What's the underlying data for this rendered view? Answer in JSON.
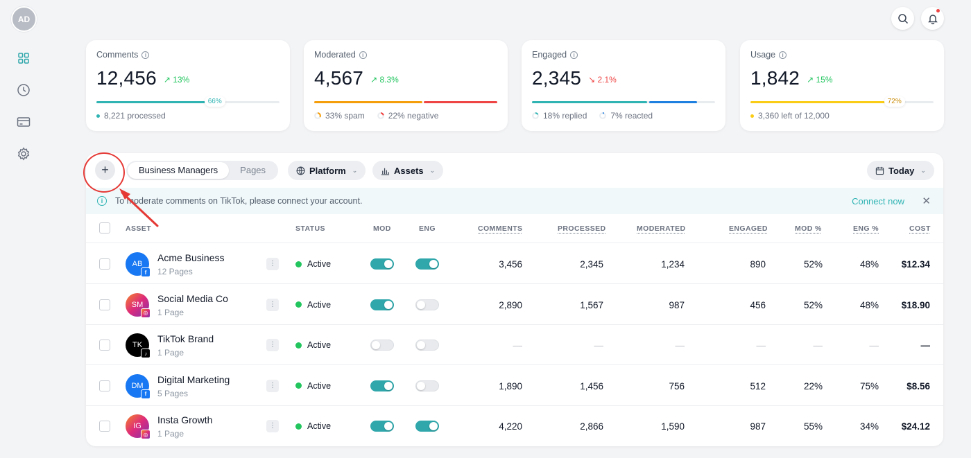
{
  "user": {
    "initials": "AD"
  },
  "sidebar": {
    "items": [
      {
        "icon": "grid-icon",
        "active": true
      },
      {
        "icon": "clock-icon",
        "active": false
      },
      {
        "icon": "credit-card-icon",
        "active": false
      },
      {
        "icon": "gear-icon",
        "active": false
      }
    ]
  },
  "stats": [
    {
      "title": "Comments",
      "value": "12,456",
      "delta": "↗ 13%",
      "trend": "up",
      "progress": 0.66,
      "pill": "66%",
      "footer": [
        "8,221 processed"
      ]
    },
    {
      "title": "Moderated",
      "value": "4,567",
      "delta": "↗ 8.3%",
      "trend": "up",
      "split": [
        0.33,
        0.22
      ],
      "footer": [
        "33% spam",
        "22% negative"
      ]
    },
    {
      "title": "Engaged",
      "value": "2,345",
      "delta": "↘ 2.1%",
      "trend": "down",
      "split": [
        0.18,
        0.07
      ],
      "footer": [
        "18% replied",
        "7% reacted"
      ]
    },
    {
      "title": "Usage",
      "value": "1,842",
      "delta": "↗ 15%",
      "trend": "up",
      "progress": 0.72,
      "pill": "72%",
      "footer": [
        "3,360 left of 12,000"
      ]
    }
  ],
  "toolbar": {
    "tabs": [
      "Business Managers",
      "Pages"
    ],
    "active_tab": "Business Managers",
    "platform_label": "Platform",
    "assets_label": "Assets",
    "date_label": "Today"
  },
  "banner": {
    "text": "To moderate comments on TikTok, please connect your account.",
    "link": "Connect now"
  },
  "columns": [
    "ASSET",
    "STATUS",
    "MOD",
    "ENG",
    "COMMENTS",
    "PROCESSED",
    "MODERATED",
    "ENGAGED",
    "MOD %",
    "ENG %",
    "COST"
  ],
  "rows": [
    {
      "initials": "AB",
      "name": "Acme Business",
      "sub": "12 Pages",
      "platform": "facebook",
      "status": "Active",
      "mod": true,
      "eng": true,
      "comments": "3,456",
      "processed": "2,345",
      "moderated": "1,234",
      "engaged": "890",
      "mod_pct": "52%",
      "eng_pct": "48%",
      "cost": "$12.34"
    },
    {
      "initials": "SM",
      "name": "Social Media Co",
      "sub": "1 Page",
      "platform": "instagram",
      "status": "Active",
      "mod": true,
      "eng": false,
      "comments": "2,890",
      "processed": "1,567",
      "moderated": "987",
      "engaged": "456",
      "mod_pct": "52%",
      "eng_pct": "48%",
      "cost": "$18.90"
    },
    {
      "initials": "TK",
      "name": "TikTok Brand",
      "sub": "1 Page",
      "platform": "tiktok",
      "status": "Active",
      "mod": false,
      "eng": false,
      "comments": "—",
      "processed": "—",
      "moderated": "—",
      "engaged": "—",
      "mod_pct": "—",
      "eng_pct": "—",
      "cost": "—"
    },
    {
      "initials": "DM",
      "name": "Digital Marketing",
      "sub": "5 Pages",
      "platform": "facebook",
      "status": "Active",
      "mod": true,
      "eng": false,
      "comments": "1,890",
      "processed": "1,456",
      "moderated": "756",
      "engaged": "512",
      "mod_pct": "22%",
      "eng_pct": "75%",
      "cost": "$8.56"
    },
    {
      "initials": "IG",
      "name": "Insta Growth",
      "sub": "1 Page",
      "platform": "instagram",
      "status": "Active",
      "mod": true,
      "eng": true,
      "comments": "4,220",
      "processed": "2,866",
      "moderated": "1,590",
      "engaged": "987",
      "mod_pct": "55%",
      "eng_pct": "34%",
      "cost": "$24.12"
    }
  ],
  "colors": {
    "accent": "#2fa7ab",
    "facebook": "#1877f2",
    "instagram": "#c13584",
    "tiktok": "#000000",
    "positive": "#22c55e",
    "negative": "#ef4444",
    "usage": "#facc15",
    "annotation": "#e53935"
  }
}
